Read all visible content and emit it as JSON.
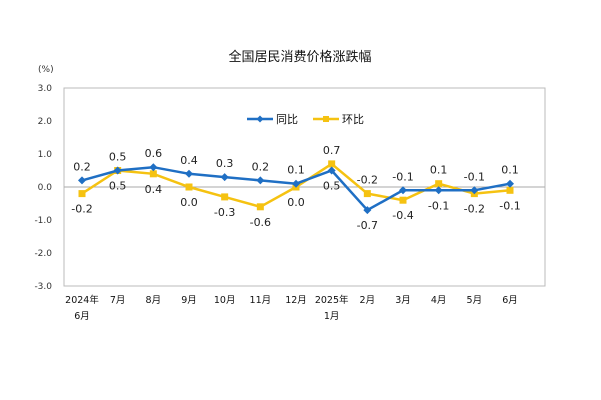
{
  "chart_data": {
    "type": "line",
    "title": "全国居民消费价格涨跌幅",
    "ylabel": "(%)",
    "ylim": [
      -3.0,
      3.0
    ],
    "yticks": [
      "3.0",
      "2.0",
      "1.0",
      "0.0",
      "-1.0",
      "-2.0",
      "-3.0"
    ],
    "categories": [
      [
        "2024年",
        "6月"
      ],
      [
        "7月"
      ],
      [
        "8月"
      ],
      [
        "9月"
      ],
      [
        "10月"
      ],
      [
        "11月"
      ],
      [
        "12月"
      ],
      [
        "2025年",
        "1月"
      ],
      [
        "2月"
      ],
      [
        "3月"
      ],
      [
        "4月"
      ],
      [
        "5月"
      ],
      [
        "6月"
      ]
    ],
    "grid": false,
    "legend": "top-center",
    "series": [
      {
        "name": "同比",
        "color": "#1f6fc4",
        "marker": "diamond",
        "values": [
          0.2,
          0.5,
          0.6,
          0.4,
          0.3,
          0.2,
          0.1,
          0.5,
          -0.7,
          -0.1,
          -0.1,
          -0.1,
          0.1
        ],
        "label_pos": [
          "above",
          "above",
          "above",
          "above",
          "above",
          "above",
          "above",
          "below",
          "below",
          "above",
          "below",
          "above",
          "above"
        ]
      },
      {
        "name": "环比",
        "color": "#f5c211",
        "marker": "square",
        "values": [
          -0.2,
          0.5,
          0.4,
          0.0,
          -0.3,
          -0.6,
          0.0,
          0.7,
          -0.2,
          -0.4,
          0.1,
          -0.2,
          -0.1
        ],
        "label_pos": [
          "below",
          "below",
          "below",
          "below",
          "below",
          "below",
          "below",
          "above",
          "above",
          "below",
          "above",
          "below",
          "below"
        ]
      }
    ]
  }
}
